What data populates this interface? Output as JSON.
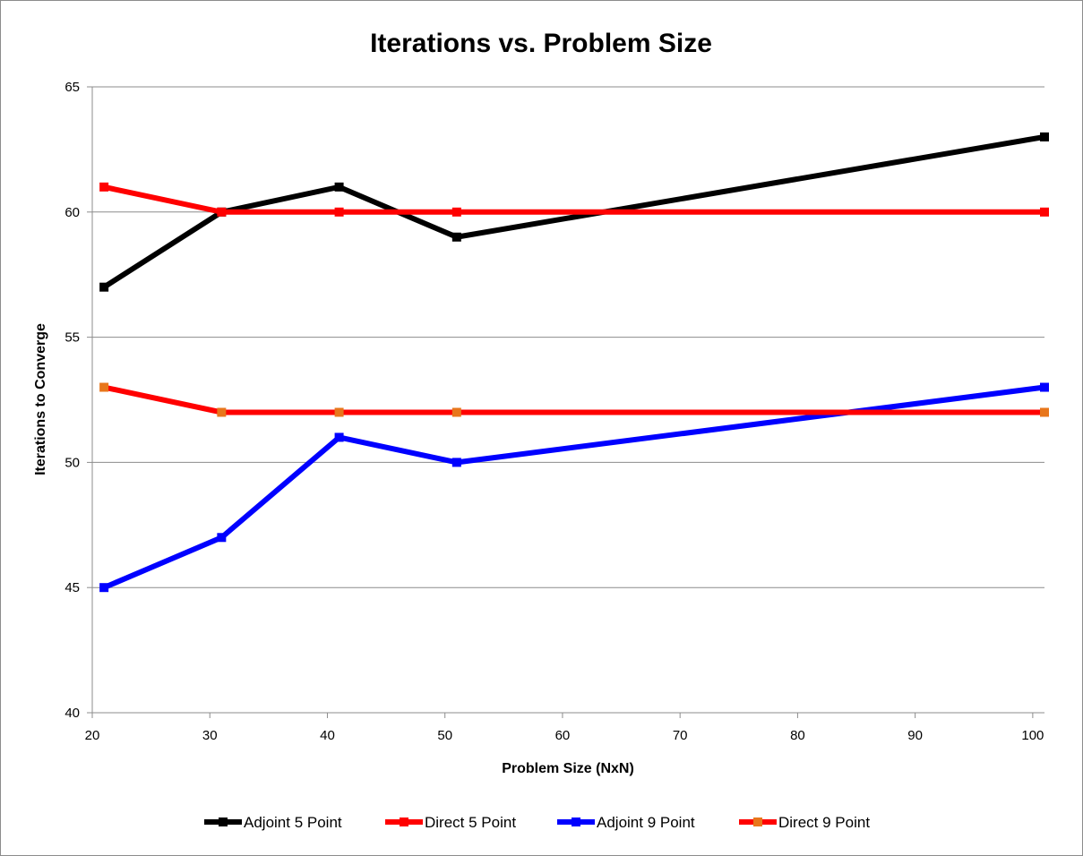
{
  "chart_data": {
    "type": "line",
    "title": "Iterations vs. Problem Size",
    "xlabel": "Problem Size (NxN)",
    "ylabel": "Iterations to Converge",
    "xlim": [
      20,
      101
    ],
    "ylim": [
      40,
      65
    ],
    "xticks": [
      20,
      30,
      40,
      50,
      60,
      70,
      80,
      90,
      100
    ],
    "yticks": [
      40,
      45,
      50,
      55,
      60,
      65
    ],
    "grid": "horizontal",
    "legend_position": "bottom",
    "series": [
      {
        "name": "Adjoint 5 Point",
        "line_color": "#000000",
        "marker_color": "#000000",
        "x": [
          21,
          31,
          41,
          51,
          101
        ],
        "y": [
          57,
          60,
          61,
          59,
          63
        ]
      },
      {
        "name": "Direct 5 Point",
        "line_color": "#ff0000",
        "marker_color": "#ff0000",
        "x": [
          21,
          31,
          41,
          51,
          101
        ],
        "y": [
          61,
          60,
          60,
          60,
          60
        ]
      },
      {
        "name": "Adjoint 9 Point",
        "line_color": "#0000ff",
        "marker_color": "#0000ff",
        "x": [
          21,
          31,
          41,
          51,
          101
        ],
        "y": [
          45,
          47,
          51,
          50,
          53
        ]
      },
      {
        "name": "Direct 9 Point",
        "line_color": "#ff0000",
        "marker_color": "#e8761b",
        "x": [
          21,
          31,
          41,
          51,
          101
        ],
        "y": [
          53,
          52,
          52,
          52,
          52
        ]
      }
    ]
  }
}
